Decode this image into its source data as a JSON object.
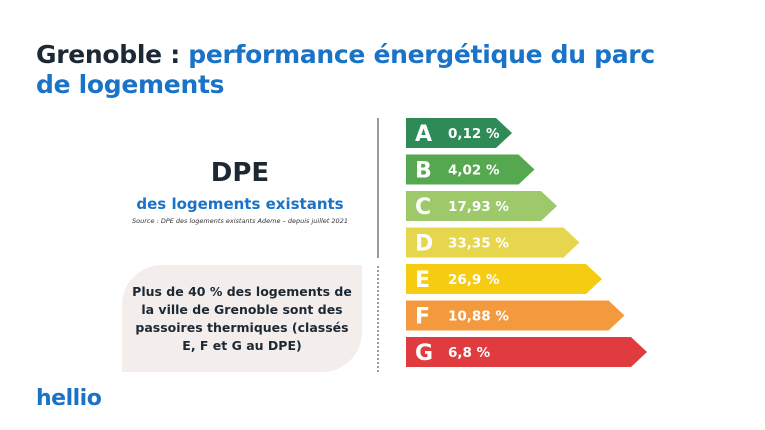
{
  "title": {
    "part1": "Grenoble :",
    "part2": " performance énergétique du parc de logements"
  },
  "dpe": {
    "heading": "DPE",
    "subheading": "des logements existants",
    "source": "Source : DPE des logements existants Ademe – depuis juillet 2021"
  },
  "callout": {
    "text": "Plus de 40 % des logements de la ville de Grenoble sont des passoires thermiques (classés E, F et G au DPE)"
  },
  "brand": {
    "logo_text": "hellio"
  },
  "colors": {
    "title_dark": "#1c2833",
    "accent_blue": "#1a73c7",
    "callout_bg": "#f3eeec"
  },
  "chart_data": {
    "type": "bar",
    "title": "DPE des logements existants",
    "categories": [
      "A",
      "B",
      "C",
      "D",
      "E",
      "F",
      "G"
    ],
    "values": [
      0.12,
      4.02,
      17.93,
      33.35,
      26.9,
      10.88,
      6.8
    ],
    "value_labels": [
      "0,12 %",
      "4,02 %",
      "17,93 %",
      "33,35 %",
      "26,9 %",
      "10,88 %",
      "6,8 %"
    ],
    "colors": [
      "#2e8b57",
      "#55a84f",
      "#9dc96b",
      "#e5d64e",
      "#f5cc12",
      "#f49a3e",
      "#e03c3f"
    ],
    "unit": "%"
  }
}
